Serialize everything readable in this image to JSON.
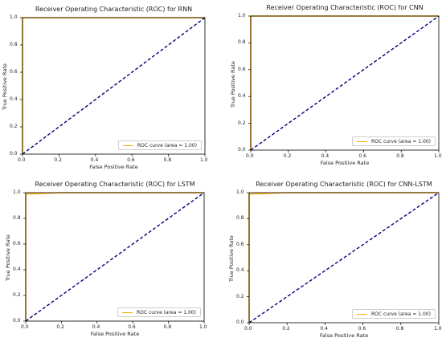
{
  "figure": {
    "xlabel": "False Positive Rate",
    "ylabel": "True Positive Rate",
    "tick_labels": [
      "0.0",
      "0.2",
      "0.4",
      "0.6",
      "0.8",
      "1.0"
    ],
    "legend_label": "ROC curve (area = 1.00)"
  },
  "chart_data": [
    {
      "type": "line",
      "title": "Receiver Operating Characteristic (ROC) for RNN",
      "xlabel": "False Positive Rate",
      "ylabel": "True Positive Rate",
      "xlim": [
        0,
        1
      ],
      "ylim": [
        0,
        1
      ],
      "legend": "lower-right",
      "series": [
        {
          "name": "ROC curve (area = 1.00)",
          "color": "#FFA500",
          "style": "solid",
          "x": [
            0,
            0,
            1
          ],
          "y": [
            0,
            1,
            1
          ]
        },
        {
          "color": "#000080",
          "style": "dashed",
          "x": [
            0,
            1
          ],
          "y": [
            0,
            1
          ]
        }
      ]
    },
    {
      "type": "line",
      "title": "Receiver Operating Characteristic (ROC) for CNN",
      "xlabel": "False Positive Rate",
      "ylabel": "True Positive Rate",
      "xlim": [
        0,
        1
      ],
      "ylim": [
        0,
        1
      ],
      "legend": "lower-right",
      "series": [
        {
          "name": "ROC curve (area = 1.00)",
          "color": "#FFA500",
          "style": "solid",
          "x": [
            0,
            0,
            1
          ],
          "y": [
            0,
            1,
            1
          ]
        },
        {
          "color": "#000080",
          "style": "dashed",
          "x": [
            0,
            1
          ],
          "y": [
            0,
            1
          ]
        }
      ]
    },
    {
      "type": "line",
      "title": "Receiver Operating Characteristic (ROC) for LSTM",
      "xlabel": "False Positive Rate",
      "ylabel": "True Positive Rate",
      "xlim": [
        0,
        1
      ],
      "ylim": [
        0,
        1
      ],
      "legend": "lower-right",
      "series": [
        {
          "name": "ROC curve (area = 1.00)",
          "color": "#FFA500",
          "style": "solid",
          "x": [
            0,
            0,
            0.01,
            0.2,
            1
          ],
          "y": [
            0,
            0.99,
            0.99,
            1,
            1
          ]
        },
        {
          "color": "#000080",
          "style": "dashed",
          "x": [
            0,
            1
          ],
          "y": [
            0,
            1
          ]
        }
      ]
    },
    {
      "type": "line",
      "title": "Receiver Operating Characteristic (ROC) for CNN-LSTM",
      "xlabel": "False Positive Rate",
      "ylabel": "True Positive Rate",
      "xlim": [
        0,
        1
      ],
      "ylim": [
        0,
        1
      ],
      "legend": "lower-right",
      "series": [
        {
          "name": "ROC curve (area = 1.00)",
          "color": "#FFA500",
          "style": "solid",
          "x": [
            0,
            0,
            0.01,
            0.2,
            1
          ],
          "y": [
            0,
            0.99,
            0.99,
            1,
            1
          ]
        },
        {
          "color": "#000080",
          "style": "dashed",
          "x": [
            0,
            1
          ],
          "y": [
            0,
            1
          ]
        }
      ]
    }
  ]
}
